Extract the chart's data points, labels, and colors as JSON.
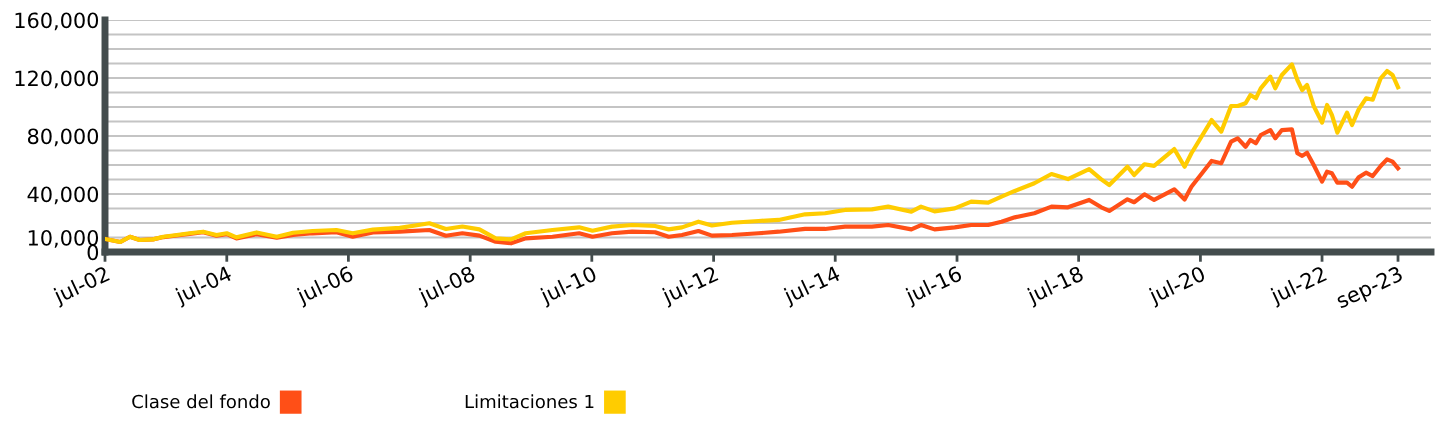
{
  "chart_data": {
    "type": "line",
    "x": [
      "2002-07-01",
      "2002-10-01",
      "2002-11-28",
      "2003-01-25",
      "2003-04-15",
      "2003-06-17",
      "2003-09-05",
      "2003-11-21",
      "2004-02-10",
      "2004-04-30",
      "2004-07-01",
      "2004-08-28",
      "2004-12-27",
      "2005-04-27",
      "2005-08-03",
      "2005-11-28",
      "2006-04-20",
      "2006-07-27",
      "2006-11-25",
      "2007-05-05",
      "2007-10-30",
      "2008-02-06",
      "2008-05-15",
      "2008-08-25",
      "2008-12-01",
      "2009-03-03",
      "2009-05-30",
      "2009-11-07",
      "2010-04-16",
      "2010-07-05",
      "2010-10-30",
      "2011-02-28",
      "2011-07-16",
      "2011-10-05",
      "2011-12-24",
      "2012-04-01",
      "2012-06-21",
      "2012-10-19",
      "2013-03-28",
      "2013-07-27",
      "2014-01-01",
      "2014-05-01",
      "2014-08-29",
      "2015-02-06",
      "2015-05-15",
      "2015-10-01",
      "2015-11-28",
      "2016-02-17",
      "2016-06-17",
      "2016-09-24",
      "2017-01-04",
      "2017-03-25",
      "2017-06-13",
      "2017-10-08",
      "2018-01-19",
      "2018-04-28",
      "2018-09-02",
      "2018-11-14",
      "2019-01-01",
      "2019-04-20",
      "2019-05-30",
      "2019-07-31",
      "2019-09-27",
      "2020-01-26",
      "2020-03-28",
      "2020-05-08",
      "2020-09-06",
      "2020-11-03",
      "2021-01-01",
      "2021-02-10",
      "2021-03-29",
      "2021-04-27",
      "2021-05-30",
      "2021-06-28",
      "2021-08-25",
      "2021-09-23",
      "2021-11-02",
      "2022-01-01",
      "2022-02-03",
      "2022-03-04",
      "2022-04-02",
      "2022-05-12",
      "2022-07-01",
      "2022-07-31",
      "2022-08-29",
      "2022-10-01",
      "2022-11-28",
      "2022-12-28",
      "2023-02-06",
      "2023-03-22",
      "2023-05-01",
      "2023-06-18",
      "2023-07-26",
      "2023-08-28",
      "2023-09-30"
    ],
    "series": [
      {
        "name": "Clase del fondo",
        "color": "#ff4f17",
        "values": [
          9000,
          6900,
          10500,
          8300,
          8700,
          10300,
          11400,
          12500,
          13600,
          11200,
          12300,
          9400,
          12300,
          9800,
          11800,
          12900,
          13700,
          10500,
          13500,
          14000,
          15200,
          11200,
          12900,
          11300,
          7100,
          6000,
          9400,
          10500,
          12900,
          10500,
          12900,
          14000,
          13600,
          10500,
          11700,
          14500,
          11300,
          11700,
          12900,
          14000,
          15900,
          15900,
          17500,
          17500,
          18600,
          15600,
          18600,
          15600,
          17000,
          18600,
          18600,
          20900,
          23900,
          26700,
          31300,
          30800,
          35900,
          30800,
          28300,
          36300,
          34300,
          39800,
          35900,
          43200,
          36200,
          45000,
          62800,
          61200,
          76100,
          78400,
          72600,
          77300,
          75000,
          80700,
          84100,
          78400,
          84100,
          84600,
          68100,
          66300,
          68500,
          60000,
          48500,
          55400,
          54300,
          47800,
          47800,
          45000,
          51500,
          54700,
          52400,
          59300,
          63900,
          62300,
          57700
        ]
      },
      {
        "name": "Limitaciones 1",
        "color": "#ffcc00",
        "values": [
          9000,
          6900,
          10500,
          8300,
          8700,
          10500,
          11700,
          12900,
          14000,
          11700,
          12900,
          10100,
          13500,
          10500,
          13300,
          14500,
          15200,
          12900,
          15400,
          16600,
          19800,
          15900,
          17600,
          15600,
          9400,
          8700,
          12900,
          15200,
          17000,
          14700,
          17500,
          18600,
          18000,
          15600,
          17000,
          20900,
          18300,
          20200,
          21400,
          22100,
          26000,
          26700,
          29000,
          29400,
          31300,
          27800,
          31300,
          28000,
          30100,
          34700,
          34000,
          38200,
          42100,
          47400,
          53800,
          50300,
          57200,
          50100,
          46200,
          58800,
          53100,
          60500,
          59400,
          71000,
          58800,
          68100,
          91000,
          83000,
          100700,
          100700,
          102600,
          108300,
          106000,
          112900,
          120900,
          112900,
          122100,
          129400,
          118600,
          111700,
          115200,
          100700,
          89200,
          101400,
          94500,
          82300,
          96100,
          87600,
          98400,
          106000,
          105000,
          119800,
          124800,
          122100,
          113600
        ]
      }
    ],
    "xlim": [
      "2002-07-01",
      "2024-04-15"
    ],
    "xticks": [
      {
        "value": "2002-07-01",
        "label": "jul-02"
      },
      {
        "value": "2004-07-01",
        "label": "jul-04"
      },
      {
        "value": "2006-07-01",
        "label": "jul-06"
      },
      {
        "value": "2008-07-01",
        "label": "jul-08"
      },
      {
        "value": "2010-07-01",
        "label": "jul-10"
      },
      {
        "value": "2012-07-01",
        "label": "jul-12"
      },
      {
        "value": "2014-07-01",
        "label": "jul-14"
      },
      {
        "value": "2016-07-01",
        "label": "jul-16"
      },
      {
        "value": "2018-07-01",
        "label": "jul-18"
      },
      {
        "value": "2020-07-01",
        "label": "jul-20"
      },
      {
        "value": "2022-07-01",
        "label": "jul-22"
      },
      {
        "value": "2023-09-30",
        "label": "sep-23"
      }
    ],
    "ylim": [
      0,
      160000
    ],
    "yticks": [
      {
        "value": 0,
        "label": "0"
      },
      {
        "value": 10000,
        "label": "10,000"
      },
      {
        "value": 20000,
        "label": null
      },
      {
        "value": 30000,
        "label": null
      },
      {
        "value": 40000,
        "label": "40,000"
      },
      {
        "value": 50000,
        "label": null
      },
      {
        "value": 60000,
        "label": null
      },
      {
        "value": 70000,
        "label": null
      },
      {
        "value": 80000,
        "label": "80,000"
      },
      {
        "value": 90000,
        "label": null
      },
      {
        "value": 100000,
        "label": null
      },
      {
        "value": 110000,
        "label": null
      },
      {
        "value": 120000,
        "label": "120,000"
      },
      {
        "value": 130000,
        "label": null
      },
      {
        "value": 140000,
        "label": null
      },
      {
        "value": 150000,
        "label": null
      },
      {
        "value": 160000,
        "label": "160,000"
      }
    ],
    "grid": "y",
    "legend": "bottom left",
    "marker": "none",
    "line_style": "solid"
  }
}
